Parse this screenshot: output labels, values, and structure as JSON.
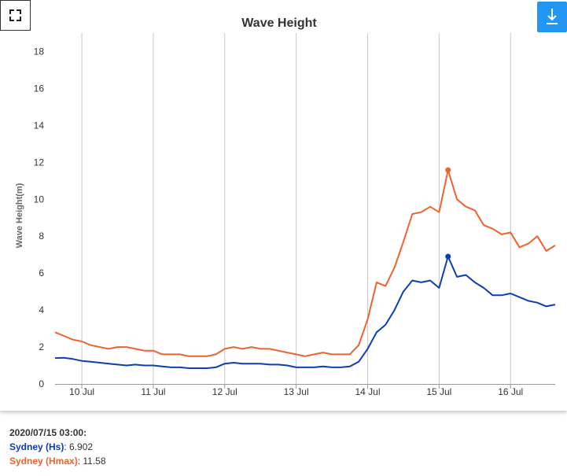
{
  "colors": {
    "hs": "#0a3fb4",
    "hmax": "#f0622d",
    "grid": "#c8c8c8",
    "download_bg": "#2196f3"
  },
  "icons": {
    "fullscreen": "fullscreen-icon",
    "download": "download-icon"
  },
  "readout": {
    "timestamp": "2020/07/15 03:00:",
    "hs_label": "Sydney (Hs)",
    "hs_value": "6.902",
    "hmax_label": "Sydney (Hmax)",
    "hmax_value": "11.58"
  },
  "chart_data": {
    "type": "line",
    "title": "Wave Height",
    "ylabel": "Wave Height(m)",
    "xlabel": "",
    "ylim": [
      0,
      19
    ],
    "yticks": [
      0,
      2,
      4,
      6,
      8,
      10,
      12,
      14,
      16,
      18
    ],
    "xlim": [
      "2020-07-09 15:00",
      "2020-07-16 15:00"
    ],
    "xticks": [
      {
        "t": "2020-07-10 00:00",
        "label": "10 Jul"
      },
      {
        "t": "2020-07-11 00:00",
        "label": "11 Jul"
      },
      {
        "t": "2020-07-12 00:00",
        "label": "12 Jul"
      },
      {
        "t": "2020-07-13 00:00",
        "label": "13 Jul"
      },
      {
        "t": "2020-07-14 00:00",
        "label": "14 Jul"
      },
      {
        "t": "2020-07-15 00:00",
        "label": "15 Jul"
      },
      {
        "t": "2020-07-16 00:00",
        "label": "16 Jul"
      }
    ],
    "grid": true,
    "highlight": {
      "t": "2020-07-15 03:00",
      "hs": 6.902,
      "hmax": 11.58
    },
    "series": [
      {
        "name": "Sydney (Hs)",
        "color": "#0a3fb4",
        "points": [
          [
            "2020-07-09 15:00",
            1.4
          ],
          [
            "2020-07-09 18:00",
            1.42
          ],
          [
            "2020-07-09 21:00",
            1.35
          ],
          [
            "2020-07-10 00:00",
            1.25
          ],
          [
            "2020-07-10 03:00",
            1.2
          ],
          [
            "2020-07-10 06:00",
            1.15
          ],
          [
            "2020-07-10 09:00",
            1.1
          ],
          [
            "2020-07-10 12:00",
            1.05
          ],
          [
            "2020-07-10 15:00",
            1.0
          ],
          [
            "2020-07-10 18:00",
            1.05
          ],
          [
            "2020-07-10 21:00",
            1.0
          ],
          [
            "2020-07-11 00:00",
            1.0
          ],
          [
            "2020-07-11 03:00",
            0.95
          ],
          [
            "2020-07-11 06:00",
            0.9
          ],
          [
            "2020-07-11 09:00",
            0.9
          ],
          [
            "2020-07-11 12:00",
            0.85
          ],
          [
            "2020-07-11 15:00",
            0.85
          ],
          [
            "2020-07-11 18:00",
            0.85
          ],
          [
            "2020-07-11 21:00",
            0.9
          ],
          [
            "2020-07-12 00:00",
            1.1
          ],
          [
            "2020-07-12 03:00",
            1.15
          ],
          [
            "2020-07-12 06:00",
            1.1
          ],
          [
            "2020-07-12 09:00",
            1.1
          ],
          [
            "2020-07-12 12:00",
            1.1
          ],
          [
            "2020-07-12 15:00",
            1.05
          ],
          [
            "2020-07-12 18:00",
            1.05
          ],
          [
            "2020-07-12 21:00",
            1.0
          ],
          [
            "2020-07-13 00:00",
            0.9
          ],
          [
            "2020-07-13 03:00",
            0.9
          ],
          [
            "2020-07-13 06:00",
            0.9
          ],
          [
            "2020-07-13 09:00",
            0.95
          ],
          [
            "2020-07-13 12:00",
            0.9
          ],
          [
            "2020-07-13 15:00",
            0.9
          ],
          [
            "2020-07-13 18:00",
            0.95
          ],
          [
            "2020-07-13 21:00",
            1.2
          ],
          [
            "2020-07-14 00:00",
            1.9
          ],
          [
            "2020-07-14 03:00",
            2.8
          ],
          [
            "2020-07-14 06:00",
            3.2
          ],
          [
            "2020-07-14 09:00",
            4.0
          ],
          [
            "2020-07-14 12:00",
            5.0
          ],
          [
            "2020-07-14 15:00",
            5.6
          ],
          [
            "2020-07-14 18:00",
            5.5
          ],
          [
            "2020-07-14 21:00",
            5.6
          ],
          [
            "2020-07-15 00:00",
            5.2
          ],
          [
            "2020-07-15 03:00",
            6.902
          ],
          [
            "2020-07-15 06:00",
            5.8
          ],
          [
            "2020-07-15 09:00",
            5.9
          ],
          [
            "2020-07-15 12:00",
            5.5
          ],
          [
            "2020-07-15 15:00",
            5.2
          ],
          [
            "2020-07-15 18:00",
            4.8
          ],
          [
            "2020-07-15 21:00",
            4.8
          ],
          [
            "2020-07-16 00:00",
            4.9
          ],
          [
            "2020-07-16 03:00",
            4.7
          ],
          [
            "2020-07-16 06:00",
            4.5
          ],
          [
            "2020-07-16 09:00",
            4.4
          ],
          [
            "2020-07-16 12:00",
            4.2
          ],
          [
            "2020-07-16 15:00",
            4.3
          ]
        ]
      },
      {
        "name": "Sydney (Hmax)",
        "color": "#f0622d",
        "points": [
          [
            "2020-07-09 15:00",
            2.8
          ],
          [
            "2020-07-09 18:00",
            2.6
          ],
          [
            "2020-07-09 21:00",
            2.4
          ],
          [
            "2020-07-10 00:00",
            2.3
          ],
          [
            "2020-07-10 03:00",
            2.1
          ],
          [
            "2020-07-10 06:00",
            2.0
          ],
          [
            "2020-07-10 09:00",
            1.9
          ],
          [
            "2020-07-10 12:00",
            2.0
          ],
          [
            "2020-07-10 15:00",
            2.0
          ],
          [
            "2020-07-10 18:00",
            1.9
          ],
          [
            "2020-07-10 21:00",
            1.8
          ],
          [
            "2020-07-11 00:00",
            1.8
          ],
          [
            "2020-07-11 03:00",
            1.6
          ],
          [
            "2020-07-11 06:00",
            1.6
          ],
          [
            "2020-07-11 09:00",
            1.6
          ],
          [
            "2020-07-11 12:00",
            1.5
          ],
          [
            "2020-07-11 15:00",
            1.5
          ],
          [
            "2020-07-11 18:00",
            1.5
          ],
          [
            "2020-07-11 21:00",
            1.6
          ],
          [
            "2020-07-12 00:00",
            1.9
          ],
          [
            "2020-07-12 03:00",
            2.0
          ],
          [
            "2020-07-12 06:00",
            1.9
          ],
          [
            "2020-07-12 09:00",
            2.0
          ],
          [
            "2020-07-12 12:00",
            1.9
          ],
          [
            "2020-07-12 15:00",
            1.9
          ],
          [
            "2020-07-12 18:00",
            1.8
          ],
          [
            "2020-07-12 21:00",
            1.7
          ],
          [
            "2020-07-13 00:00",
            1.6
          ],
          [
            "2020-07-13 03:00",
            1.5
          ],
          [
            "2020-07-13 06:00",
            1.6
          ],
          [
            "2020-07-13 09:00",
            1.7
          ],
          [
            "2020-07-13 12:00",
            1.6
          ],
          [
            "2020-07-13 15:00",
            1.6
          ],
          [
            "2020-07-13 18:00",
            1.6
          ],
          [
            "2020-07-13 21:00",
            2.1
          ],
          [
            "2020-07-14 00:00",
            3.5
          ],
          [
            "2020-07-14 03:00",
            5.5
          ],
          [
            "2020-07-14 06:00",
            5.3
          ],
          [
            "2020-07-14 09:00",
            6.3
          ],
          [
            "2020-07-14 12:00",
            7.7
          ],
          [
            "2020-07-14 15:00",
            9.2
          ],
          [
            "2020-07-14 18:00",
            9.3
          ],
          [
            "2020-07-14 21:00",
            9.6
          ],
          [
            "2020-07-15 00:00",
            9.3
          ],
          [
            "2020-07-15 03:00",
            11.58
          ],
          [
            "2020-07-15 06:00",
            10.0
          ],
          [
            "2020-07-15 09:00",
            9.6
          ],
          [
            "2020-07-15 12:00",
            9.4
          ],
          [
            "2020-07-15 15:00",
            8.6
          ],
          [
            "2020-07-15 18:00",
            8.4
          ],
          [
            "2020-07-15 21:00",
            8.1
          ],
          [
            "2020-07-16 00:00",
            8.2
          ],
          [
            "2020-07-16 03:00",
            7.4
          ],
          [
            "2020-07-16 06:00",
            7.6
          ],
          [
            "2020-07-16 09:00",
            8.0
          ],
          [
            "2020-07-16 12:00",
            7.2
          ],
          [
            "2020-07-16 15:00",
            7.5
          ]
        ]
      }
    ]
  }
}
